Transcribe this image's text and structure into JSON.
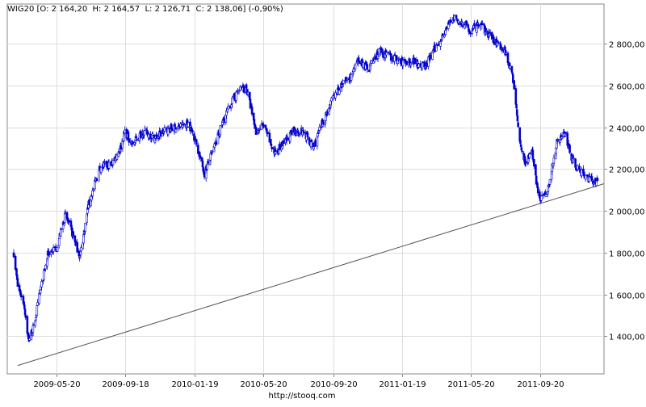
{
  "legend": {
    "ticker": "WIG20",
    "ohlc_text": "[O: 2 164,20  H: 2 164,57  L: 2 126,71  C: 2 138,06] (-0,90%)"
  },
  "source_label": "http://stooq.com",
  "colors": {
    "candle": "#0000cc",
    "grid": "#dddddd",
    "border": "#888888",
    "trendline": "#555555"
  },
  "chart_data": {
    "type": "candlestick",
    "title": "",
    "xlabel": "",
    "ylabel": "",
    "ylim": [
      1220,
      2990
    ],
    "y_ticks": [
      1400,
      1600,
      1800,
      2000,
      2200,
      2400,
      2600,
      2800
    ],
    "y_tick_labels": [
      "1 400,00",
      "1 600,00",
      "1 800,00",
      "2 000,00",
      "2 200,00",
      "2 400,00",
      "2 600,00",
      "2 800,00"
    ],
    "x_range": [
      "2009-03-06",
      "2011-12-30"
    ],
    "x_ticks": [
      "2009-05-20",
      "2009-09-18",
      "2010-01-19",
      "2010-05-20",
      "2010-09-20",
      "2011-01-19",
      "2011-05-20",
      "2011-09-20"
    ],
    "grid": true,
    "legend_position": "top-left",
    "anchors": [
      [
        "2009-03-06",
        1800
      ],
      [
        "2009-03-13",
        1640
      ],
      [
        "2009-03-24",
        1560
      ],
      [
        "2009-04-01",
        1380
      ],
      [
        "2009-04-10",
        1440
      ],
      [
        "2009-04-22",
        1620
      ],
      [
        "2009-05-06",
        1800
      ],
      [
        "2009-05-20",
        1820
      ],
      [
        "2009-06-05",
        1980
      ],
      [
        "2009-06-19",
        1880
      ],
      [
        "2009-07-01",
        1780
      ],
      [
        "2009-07-15",
        2020
      ],
      [
        "2009-08-05",
        2210
      ],
      [
        "2009-08-24",
        2220
      ],
      [
        "2009-09-10",
        2300
      ],
      [
        "2009-09-18",
        2380
      ],
      [
        "2009-10-01",
        2320
      ],
      [
        "2009-10-20",
        2380
      ],
      [
        "2009-11-10",
        2350
      ],
      [
        "2009-12-01",
        2390
      ],
      [
        "2009-12-22",
        2400
      ],
      [
        "2010-01-08",
        2420
      ],
      [
        "2010-01-19",
        2350
      ],
      [
        "2010-02-05",
        2180
      ],
      [
        "2010-02-22",
        2300
      ],
      [
        "2010-03-10",
        2430
      ],
      [
        "2010-03-25",
        2520
      ],
      [
        "2010-04-08",
        2580
      ],
      [
        "2010-04-20",
        2590
      ],
      [
        "2010-05-07",
        2380
      ],
      [
        "2010-05-20",
        2410
      ],
      [
        "2010-06-08",
        2280
      ],
      [
        "2010-06-25",
        2320
      ],
      [
        "2010-07-12",
        2380
      ],
      [
        "2010-07-30",
        2380
      ],
      [
        "2010-08-16",
        2300
      ],
      [
        "2010-09-01",
        2420
      ],
      [
        "2010-09-20",
        2540
      ],
      [
        "2010-10-05",
        2600
      ],
      [
        "2010-10-20",
        2640
      ],
      [
        "2010-11-05",
        2720
      ],
      [
        "2010-11-20",
        2680
      ],
      [
        "2010-12-10",
        2760
      ],
      [
        "2010-12-30",
        2740
      ],
      [
        "2011-01-19",
        2710
      ],
      [
        "2011-02-10",
        2720
      ],
      [
        "2011-03-01",
        2690
      ],
      [
        "2011-03-17",
        2770
      ],
      [
        "2011-04-05",
        2860
      ],
      [
        "2011-04-18",
        2920
      ],
      [
        "2011-05-06",
        2900
      ],
      [
        "2011-05-20",
        2860
      ],
      [
        "2011-06-06",
        2890
      ],
      [
        "2011-06-22",
        2840
      ],
      [
        "2011-07-08",
        2800
      ],
      [
        "2011-07-22",
        2760
      ],
      [
        "2011-08-05",
        2600
      ],
      [
        "2011-08-15",
        2330
      ],
      [
        "2011-08-25",
        2230
      ],
      [
        "2011-09-05",
        2290
      ],
      [
        "2011-09-13",
        2140
      ],
      [
        "2011-09-20",
        2050
      ],
      [
        "2011-10-05",
        2120
      ],
      [
        "2011-10-20",
        2340
      ],
      [
        "2011-11-03",
        2370
      ],
      [
        "2011-11-14",
        2260
      ],
      [
        "2011-11-24",
        2200
      ],
      [
        "2011-12-09",
        2170
      ],
      [
        "2011-12-20",
        2140
      ],
      [
        "2011-12-30",
        2138
      ]
    ],
    "trendline": {
      "points": [
        [
          "2009-03-13",
          1260
        ],
        [
          "2011-12-30",
          2130
        ]
      ]
    }
  }
}
